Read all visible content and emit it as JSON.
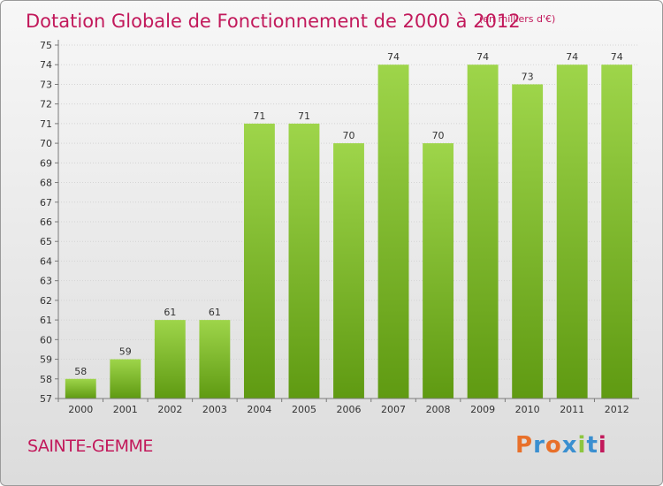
{
  "title": "Dotation Globale de Fonctionnement de 2000 à 2012",
  "unit_note": "(en milliers d'€)",
  "commune": "SAINTE-GEMME",
  "logo": {
    "text": "Proxiti",
    "letter_colors": [
      "#e8702a",
      "#3a8fd0",
      "#e8702a",
      "#3a8fd0",
      "#8dc63f",
      "#3a8fd0",
      "#c2195b"
    ]
  },
  "colors": {
    "title": "#c2195b",
    "bar_light": "#9ed54a",
    "bar_dark": "#5f9a12",
    "axis": "#7a7a7a"
  },
  "chart_data": {
    "type": "bar",
    "title": "Dotation Globale de Fonctionnement de 2000 à 2012",
    "subtitle": "(en milliers d'€)",
    "xlabel": "",
    "ylabel": "",
    "categories": [
      "2000",
      "2001",
      "2002",
      "2003",
      "2004",
      "2005",
      "2006",
      "2007",
      "2008",
      "2009",
      "2010",
      "2011",
      "2012"
    ],
    "values": [
      58,
      59,
      61,
      61,
      71,
      71,
      70,
      74,
      70,
      74,
      73,
      74,
      74
    ],
    "data_labels": [
      "58",
      "59",
      "61",
      "61",
      "71",
      "71",
      "70",
      "74",
      "70",
      "74",
      "73",
      "74",
      "74"
    ],
    "ylim": [
      57,
      75
    ],
    "yticks": [
      "57",
      "58",
      "59",
      "60",
      "61",
      "62",
      "63",
      "64",
      "65",
      "66",
      "67",
      "68",
      "69",
      "70",
      "71",
      "72",
      "73",
      "74",
      "75"
    ],
    "grid": true
  }
}
